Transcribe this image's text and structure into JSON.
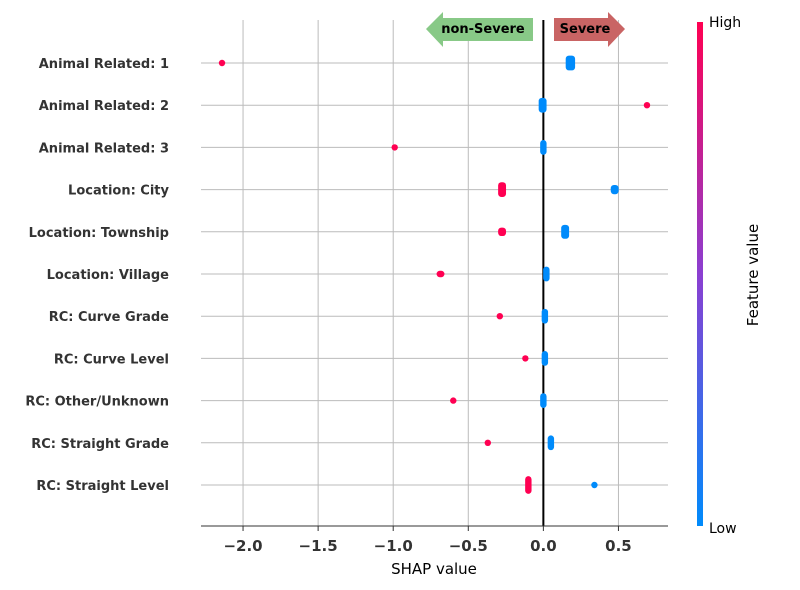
{
  "chart_data": {
    "type": "scatter",
    "subtype": "shap-beeswarm",
    "title": "",
    "xlabel": "SHAP value",
    "ylabel": "",
    "xlim": [
      -2.28,
      0.83
    ],
    "xticks": [
      -2.0,
      -1.5,
      -1.0,
      -0.5,
      0.0,
      0.5
    ],
    "xtick_labels": [
      "−2.0",
      "−1.5",
      "−1.0",
      "−0.5",
      "0.0",
      "0.5"
    ],
    "grid": true,
    "arrows": {
      "left": {
        "label": "non-Severe",
        "color": "#88c987"
      },
      "right": {
        "label": "Severe",
        "color": "#c96464"
      }
    },
    "colorbar": {
      "title": "Feature value",
      "high_label": "High",
      "low_label": "Low",
      "high_color": "#ff0052",
      "mid_color": "#8b3fd1",
      "low_color": "#008bfb"
    },
    "features": [
      {
        "name": "Animal Related: 1",
        "high": [
          [
            -2.14,
            -2.14,
            0.1
          ]
        ],
        "low": [
          [
            0.17,
            0.19,
            0.35
          ]
        ]
      },
      {
        "name": "Animal Related: 2",
        "high": [
          [
            0.69,
            0.69,
            0.1
          ]
        ],
        "low": [
          [
            -0.01,
            0.0,
            0.35
          ]
        ]
      },
      {
        "name": "Animal Related: 3",
        "high": [
          [
            -0.99,
            -0.99,
            0.08
          ]
        ],
        "low": [
          [
            0.0,
            0.0,
            0.35
          ]
        ]
      },
      {
        "name": "Location: City",
        "high": [
          [
            -0.28,
            -0.27,
            0.35
          ]
        ],
        "low": [
          [
            0.47,
            0.48,
            0.22
          ]
        ]
      },
      {
        "name": "Location: Township",
        "high": [
          [
            -0.28,
            -0.27,
            0.2
          ]
        ],
        "low": [
          [
            0.14,
            0.15,
            0.33
          ]
        ]
      },
      {
        "name": "Location: Village",
        "high": [
          [
            -0.69,
            -0.68,
            0.1
          ]
        ],
        "low": [
          [
            0.02,
            0.02,
            0.35
          ]
        ]
      },
      {
        "name": "RC: Curve Grade",
        "high": [
          [
            -0.29,
            -0.29,
            0.08
          ]
        ],
        "low": [
          [
            0.01,
            0.01,
            0.35
          ]
        ]
      },
      {
        "name": "RC: Curve Level",
        "high": [
          [
            -0.12,
            -0.12,
            0.1
          ]
        ],
        "low": [
          [
            0.01,
            0.01,
            0.35
          ]
        ]
      },
      {
        "name": "RC: Other/Unknown",
        "high": [
          [
            -0.6,
            -0.6,
            0.08
          ]
        ],
        "low": [
          [
            0.0,
            0.0,
            0.35
          ]
        ]
      },
      {
        "name": "RC: Straight Grade",
        "high": [
          [
            -0.37,
            -0.37,
            0.12
          ]
        ],
        "low": [
          [
            0.05,
            0.05,
            0.35
          ]
        ]
      },
      {
        "name": "RC: Straight Level",
        "high": [
          [
            -0.1,
            -0.1,
            0.42
          ]
        ],
        "low": [
          [
            0.34,
            0.34,
            0.15
          ]
        ]
      }
    ]
  }
}
